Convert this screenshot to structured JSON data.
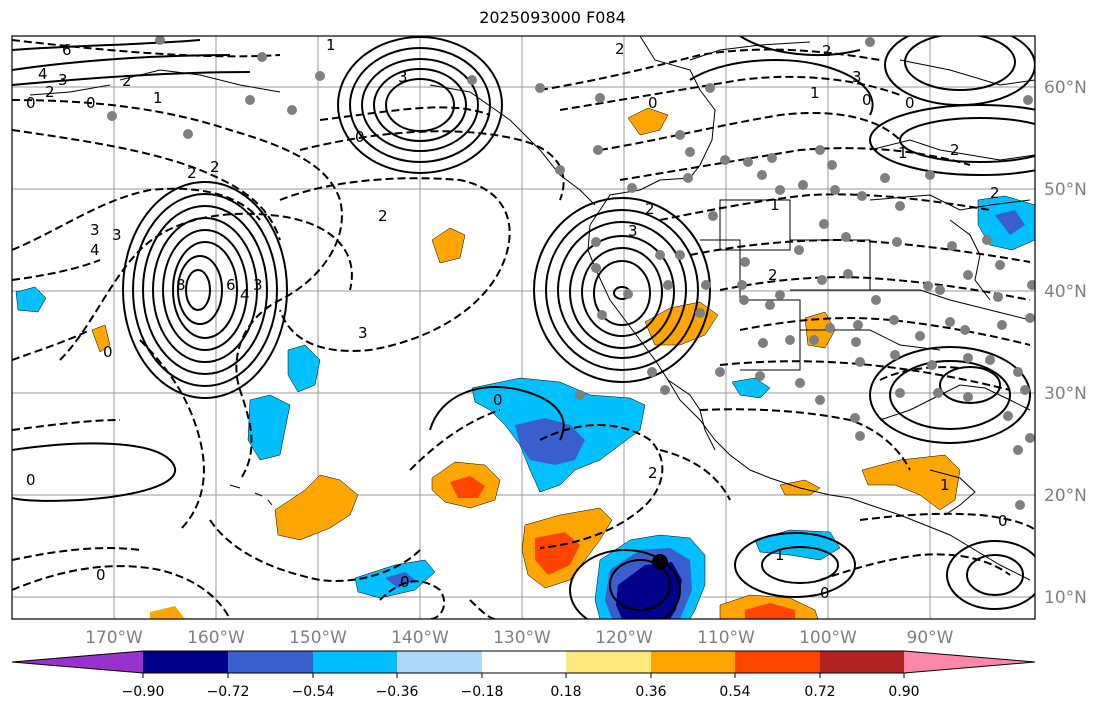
{
  "title": "2025093000 F084",
  "lat_labels": [
    "60°N",
    "50°N",
    "40°N",
    "30°N",
    "20°N",
    "10°N"
  ],
  "lon_labels": [
    "170°W",
    "160°W",
    "150°W",
    "140°W",
    "130°W",
    "120°W",
    "110°W",
    "100°W",
    "90°W"
  ],
  "colorbar": {
    "ticks": [
      "−0.90",
      "−0.72",
      "−0.54",
      "−0.36",
      "−0.18",
      "0.18",
      "0.36",
      "0.54",
      "0.72",
      "0.90"
    ],
    "colors": [
      "#9932cc",
      "#00008b",
      "#3a5fcd",
      "#00bfff",
      "#add8f7",
      "#ffffff",
      "#ffe87c",
      "#ffa500",
      "#ff4500",
      "#b22222",
      "#ff88aa"
    ]
  },
  "contour_labels": [
    "6",
    "4",
    "3",
    "2",
    "0",
    "1",
    "2",
    "3",
    "0",
    "2",
    "4",
    "3",
    "0",
    "2",
    "2",
    "2",
    "3",
    "2",
    "1",
    "6",
    "8",
    "4",
    "3",
    "3",
    "0",
    "3",
    "2",
    "3",
    "1",
    "0",
    "2",
    "0",
    "0",
    "0",
    "1",
    "1",
    "0",
    "2",
    "0",
    "0",
    "1",
    "0",
    "0",
    "2",
    "1",
    "2"
  ],
  "hurricane_marker": "storm-center"
}
